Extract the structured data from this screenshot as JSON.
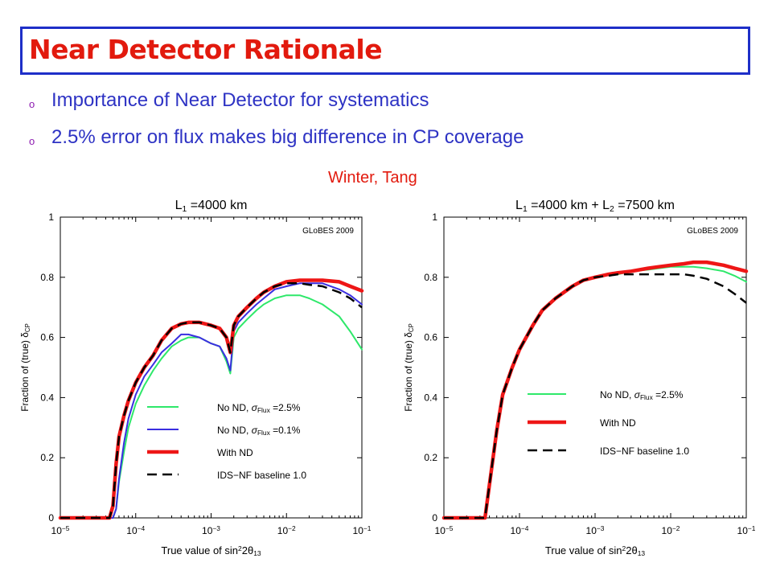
{
  "slide": {
    "title": "Near Detector Rationale",
    "bullets": [
      "Importance of Near Detector for systematics",
      "2.5% error on flux makes big difference in CP coverage"
    ],
    "bullet_marker": "o",
    "credit": "Winter, Tang",
    "colors": {
      "title": "#e21a0e",
      "title_border": "#1e2fc8",
      "bullet_text": "#2e33c4"
    }
  },
  "chart_data": [
    {
      "type": "line",
      "title_parts": [
        "L",
        "1",
        " =4000 km"
      ],
      "watermark": "GLoBES 2009",
      "xlabel_parts": [
        "True value of sin",
        "2",
        "2θ",
        "13"
      ],
      "ylabel_parts": [
        "Fraction of (true) δ",
        "CP"
      ],
      "xscale": "log",
      "xlim": [
        1e-05,
        0.1
      ],
      "ylim": [
        0,
        1
      ],
      "x_ticks": [
        {
          "b": "10",
          "e": "−5"
        },
        {
          "b": "10",
          "e": "−4"
        },
        {
          "b": "10",
          "e": "−3"
        },
        {
          "b": "10",
          "e": "−2"
        },
        {
          "b": "10",
          "e": "−1"
        }
      ],
      "y_ticks": [
        "0",
        "0.2",
        "0.4",
        "0.6",
        "0.8",
        "1"
      ],
      "y_tick_values": [
        0,
        0.2,
        0.4,
        0.6,
        0.8,
        1
      ],
      "grid": false,
      "legend_position": "lower-right",
      "series": [
        {
          "name": "No ND, σFlux =2.5%",
          "legend_parts": [
            "No ND, ",
            "σ",
            "Flux",
            " =2.5%"
          ],
          "color": "#2ee86a",
          "width": 2,
          "dash": "",
          "x": [
            1e-05,
            5e-05,
            5.5e-05,
            6e-05,
            7e-05,
            8e-05,
            0.0001,
            0.00013,
            0.00017,
            0.00022,
            0.0003,
            0.0004,
            0.0005,
            0.0007,
            0.001,
            0.0013,
            0.0016,
            0.0018,
            0.002,
            0.0023,
            0.003,
            0.004,
            0.005,
            0.007,
            0.01,
            0.015,
            0.02,
            0.03,
            0.05,
            0.07,
            0.1
          ],
          "y": [
            0,
            0,
            0.03,
            0.12,
            0.22,
            0.3,
            0.38,
            0.44,
            0.49,
            0.53,
            0.57,
            0.59,
            0.6,
            0.6,
            0.58,
            0.57,
            0.52,
            0.48,
            0.6,
            0.63,
            0.66,
            0.69,
            0.71,
            0.73,
            0.74,
            0.74,
            0.73,
            0.71,
            0.67,
            0.62,
            0.56
          ]
        },
        {
          "name": "No ND, σFlux =0.1%",
          "legend_parts": [
            "No ND, ",
            "σ",
            "Flux",
            " =0.1%"
          ],
          "color": "#3a2ee0",
          "width": 2,
          "dash": "",
          "x": [
            1e-05,
            5e-05,
            5.5e-05,
            6e-05,
            7e-05,
            8e-05,
            0.0001,
            0.00013,
            0.00017,
            0.00022,
            0.0003,
            0.0004,
            0.0005,
            0.0007,
            0.001,
            0.0013,
            0.0016,
            0.0018,
            0.002,
            0.0023,
            0.003,
            0.004,
            0.005,
            0.007,
            0.01,
            0.015,
            0.02,
            0.03,
            0.05,
            0.07,
            0.1
          ],
          "y": [
            0,
            0,
            0.03,
            0.13,
            0.25,
            0.33,
            0.41,
            0.47,
            0.51,
            0.55,
            0.58,
            0.61,
            0.61,
            0.6,
            0.58,
            0.57,
            0.53,
            0.49,
            0.62,
            0.65,
            0.68,
            0.71,
            0.73,
            0.76,
            0.77,
            0.78,
            0.78,
            0.78,
            0.76,
            0.74,
            0.71
          ]
        },
        {
          "name": "With ND",
          "legend_parts": [
            "With ND"
          ],
          "color": "#ee1616",
          "width": 4.5,
          "dash": "",
          "x": [
            1e-05,
            4.5e-05,
            5e-05,
            5.5e-05,
            6e-05,
            7e-05,
            8e-05,
            0.0001,
            0.00013,
            0.00017,
            0.00022,
            0.0003,
            0.0004,
            0.0005,
            0.0007,
            0.001,
            0.0013,
            0.0016,
            0.0018,
            0.002,
            0.0023,
            0.003,
            0.004,
            0.005,
            0.007,
            0.01,
            0.015,
            0.02,
            0.03,
            0.05,
            0.07,
            0.1
          ],
          "y": [
            0,
            0,
            0.04,
            0.18,
            0.27,
            0.34,
            0.39,
            0.45,
            0.5,
            0.54,
            0.59,
            0.63,
            0.645,
            0.65,
            0.65,
            0.64,
            0.63,
            0.6,
            0.55,
            0.64,
            0.67,
            0.7,
            0.73,
            0.75,
            0.77,
            0.785,
            0.79,
            0.79,
            0.79,
            0.785,
            0.77,
            0.755
          ]
        },
        {
          "name": "IDS−NF baseline 1.0",
          "legend_parts": [
            "IDS−NF baseline 1.0"
          ],
          "color": "#000000",
          "width": 2.5,
          "dash": "12,7",
          "x": [
            1e-05,
            4.5e-05,
            5e-05,
            5.5e-05,
            6e-05,
            7e-05,
            8e-05,
            0.0001,
            0.00013,
            0.00017,
            0.00022,
            0.0003,
            0.0004,
            0.0005,
            0.0007,
            0.001,
            0.0013,
            0.0016,
            0.0018,
            0.002,
            0.0023,
            0.003,
            0.004,
            0.005,
            0.007,
            0.01,
            0.015,
            0.02,
            0.03,
            0.05,
            0.07,
            0.1
          ],
          "y": [
            0,
            0,
            0.04,
            0.18,
            0.27,
            0.34,
            0.39,
            0.45,
            0.5,
            0.54,
            0.59,
            0.63,
            0.645,
            0.65,
            0.65,
            0.64,
            0.63,
            0.6,
            0.55,
            0.64,
            0.67,
            0.7,
            0.73,
            0.75,
            0.77,
            0.78,
            0.78,
            0.775,
            0.77,
            0.75,
            0.73,
            0.7
          ]
        }
      ]
    },
    {
      "type": "line",
      "title_parts": [
        "L",
        "1",
        " =4000 km + L",
        "2",
        " =7500 km"
      ],
      "watermark": "GLoBES 2009",
      "xlabel_parts": [
        "True value of sin",
        "2",
        "2θ",
        "13"
      ],
      "ylabel_parts": [
        "Fraction of (true) δ",
        "CP"
      ],
      "xscale": "log",
      "xlim": [
        1e-05,
        0.1
      ],
      "ylim": [
        0,
        1
      ],
      "x_ticks": [
        {
          "b": "10",
          "e": "−5"
        },
        {
          "b": "10",
          "e": "−4"
        },
        {
          "b": "10",
          "e": "−3"
        },
        {
          "b": "10",
          "e": "−2"
        },
        {
          "b": "10",
          "e": "−1"
        }
      ],
      "y_ticks": [
        "0",
        "0.2",
        "0.4",
        "0.6",
        "0.8",
        "1"
      ],
      "y_tick_values": [
        0,
        0.2,
        0.4,
        0.6,
        0.8,
        1
      ],
      "grid": false,
      "legend_position": "lower-right",
      "series": [
        {
          "name": "No ND, σFlux =2.5%",
          "legend_parts": [
            "No ND, ",
            "σ",
            "Flux",
            " =2.5%"
          ],
          "color": "#2ee86a",
          "width": 2,
          "dash": "",
          "x": [
            1e-05,
            3.5e-05,
            4e-05,
            5e-05,
            6e-05,
            8e-05,
            0.0001,
            0.00015,
            0.0002,
            0.0003,
            0.0005,
            0.0007,
            0.001,
            0.0015,
            0.002,
            0.003,
            0.005,
            0.007,
            0.01,
            0.015,
            0.02,
            0.03,
            0.05,
            0.07,
            0.1
          ],
          "y": [
            0,
            0,
            0.11,
            0.29,
            0.41,
            0.5,
            0.56,
            0.64,
            0.69,
            0.73,
            0.77,
            0.79,
            0.8,
            0.81,
            0.81,
            0.82,
            0.825,
            0.83,
            0.835,
            0.835,
            0.835,
            0.83,
            0.82,
            0.805,
            0.785
          ]
        },
        {
          "name": "With ND",
          "legend_parts": [
            "With ND"
          ],
          "color": "#ee1616",
          "width": 4.5,
          "dash": "",
          "x": [
            1e-05,
            3.5e-05,
            4e-05,
            5e-05,
            6e-05,
            8e-05,
            0.0001,
            0.00015,
            0.0002,
            0.0003,
            0.0005,
            0.0007,
            0.001,
            0.0015,
            0.002,
            0.003,
            0.005,
            0.007,
            0.01,
            0.015,
            0.02,
            0.03,
            0.05,
            0.07,
            0.1
          ],
          "y": [
            0,
            0,
            0.11,
            0.29,
            0.41,
            0.5,
            0.56,
            0.64,
            0.69,
            0.73,
            0.77,
            0.79,
            0.8,
            0.81,
            0.815,
            0.82,
            0.83,
            0.835,
            0.84,
            0.845,
            0.85,
            0.85,
            0.84,
            0.83,
            0.82
          ]
        },
        {
          "name": "IDS−NF baseline 1.0",
          "legend_parts": [
            "IDS−NF baseline 1.0"
          ],
          "color": "#000000",
          "width": 2.5,
          "dash": "12,7",
          "x": [
            1e-05,
            3.5e-05,
            4e-05,
            5e-05,
            6e-05,
            8e-05,
            0.0001,
            0.00015,
            0.0002,
            0.0003,
            0.0005,
            0.0007,
            0.001,
            0.0015,
            0.002,
            0.003,
            0.005,
            0.007,
            0.01,
            0.015,
            0.02,
            0.03,
            0.05,
            0.07,
            0.1
          ],
          "y": [
            0,
            0,
            0.11,
            0.29,
            0.41,
            0.5,
            0.56,
            0.64,
            0.69,
            0.73,
            0.77,
            0.79,
            0.8,
            0.805,
            0.81,
            0.81,
            0.81,
            0.81,
            0.81,
            0.81,
            0.805,
            0.795,
            0.77,
            0.745,
            0.715
          ]
        }
      ]
    }
  ]
}
